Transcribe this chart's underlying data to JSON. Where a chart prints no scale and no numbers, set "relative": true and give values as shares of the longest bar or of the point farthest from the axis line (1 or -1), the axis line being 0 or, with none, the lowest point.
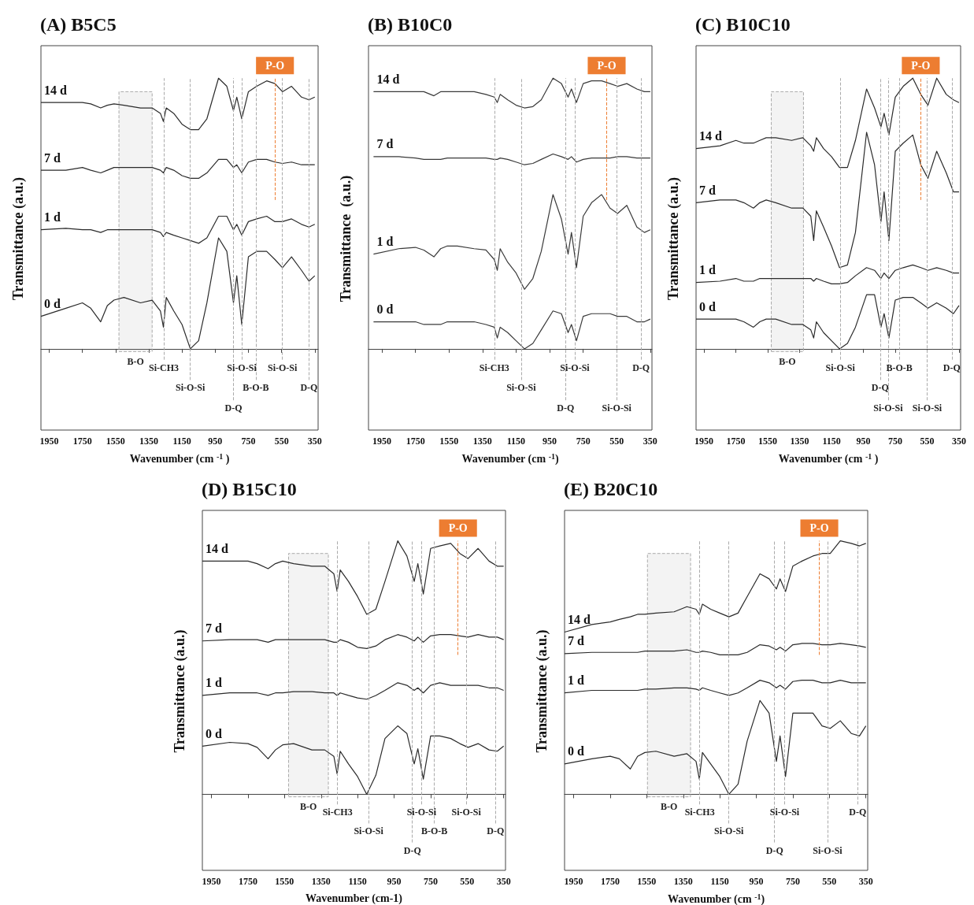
{
  "chart_data": [
    {
      "type": "line",
      "title": "(A) B5C5",
      "xlabel": "Wavenumber (cm $^{-1}$ )",
      "ylabel": "Transmittance (a.u.)",
      "relative": true,
      "xlim": [
        2000,
        330
      ],
      "xticks": [
        1950,
        1750,
        1550,
        1350,
        1150,
        950,
        750,
        550,
        350
      ],
      "x": [
        2000,
        1850,
        1750,
        1700,
        1640,
        1600,
        1560,
        1500,
        1400,
        1330,
        1280,
        1262,
        1245,
        1200,
        1150,
        1100,
        1050,
        1000,
        930,
        880,
        840,
        820,
        790,
        750,
        700,
        640,
        590,
        545,
        490,
        430,
        385,
        350
      ],
      "series": [
        {
          "name": "14 d",
          "color": "#2b2b2b",
          "values": [
            0.91,
            0.91,
            0.91,
            0.905,
            0.89,
            0.9,
            0.905,
            0.9,
            0.89,
            0.89,
            0.87,
            0.84,
            0.89,
            0.87,
            0.83,
            0.81,
            0.81,
            0.85,
            1,
            0.97,
            0.88,
            0.93,
            0.85,
            0.95,
            0.97,
            0.99,
            0.98,
            0.95,
            0.97,
            0.93,
            0.92,
            0.93
          ]
        },
        {
          "name": "7 d",
          "color": "#2b2b2b",
          "values": [
            0.66,
            0.66,
            0.67,
            0.66,
            0.65,
            0.66,
            0.67,
            0.67,
            0.67,
            0.67,
            0.66,
            0.65,
            0.67,
            0.66,
            0.64,
            0.63,
            0.63,
            0.65,
            0.7,
            0.7,
            0.67,
            0.68,
            0.65,
            0.69,
            0.7,
            0.7,
            0.69,
            0.685,
            0.69,
            0.68,
            0.68,
            0.68
          ]
        },
        {
          "name": "1 d",
          "color": "#2b2b2b",
          "values": [
            0.44,
            0.445,
            0.44,
            0.44,
            0.43,
            0.44,
            0.44,
            0.44,
            0.44,
            0.44,
            0.43,
            0.415,
            0.43,
            0.42,
            0.41,
            0.4,
            0.39,
            0.41,
            0.49,
            0.49,
            0.44,
            0.46,
            0.42,
            0.47,
            0.48,
            0.49,
            0.47,
            0.47,
            0.48,
            0.46,
            0.45,
            0.46
          ]
        },
        {
          "name": "0 d",
          "color": "#2b2b2b",
          "values": [
            0.12,
            0.15,
            0.17,
            0.15,
            0.1,
            0.16,
            0.18,
            0.19,
            0.17,
            0.18,
            0.14,
            0.08,
            0.19,
            0.14,
            0.09,
            0,
            0.03,
            0.17,
            0.41,
            0.36,
            0.17,
            0.27,
            0.09,
            0.34,
            0.36,
            0.36,
            0.33,
            0.3,
            0.34,
            0.29,
            0.25,
            0.27
          ]
        }
      ],
      "ref_lines": [
        {
          "axis": "x",
          "value": 1260,
          "label": "Si-CH3"
        },
        {
          "axis": "x",
          "value": 1100,
          "label": "Si-O-Si"
        },
        {
          "axis": "x",
          "value": 840,
          "label": "D-Q"
        },
        {
          "axis": "x",
          "value": 790,
          "label": "Si-O-Si"
        },
        {
          "axis": "x",
          "value": 705,
          "label": "B-O-B"
        },
        {
          "axis": "x",
          "value": 590,
          "label": "P-O",
          "color": "#ed7d31"
        },
        {
          "axis": "x",
          "value": 545,
          "label": "Si-O-Si"
        },
        {
          "axis": "x",
          "value": 385,
          "label": "D-Q"
        }
      ],
      "bands": [
        {
          "axis": "x",
          "from": 1530,
          "to": 1330,
          "label": "B-O"
        }
      ]
    },
    {
      "type": "line",
      "title": "(B) B10C0",
      "xlabel": "Wavenumber (cm $^{-1}$)",
      "ylabel": "Transmittance  (a.u.)",
      "relative": true,
      "xlim": [
        2030,
        340
      ],
      "xticks": [
        1950,
        1750,
        1550,
        1350,
        1150,
        950,
        750,
        550,
        350
      ],
      "x": [
        2000,
        1850,
        1750,
        1700,
        1640,
        1600,
        1560,
        1500,
        1400,
        1330,
        1280,
        1262,
        1245,
        1200,
        1150,
        1100,
        1050,
        1000,
        930,
        880,
        840,
        820,
        790,
        750,
        700,
        640,
        590,
        545,
        490,
        430,
        385,
        350
      ],
      "series": [
        {
          "name": "14 d",
          "color": "#3a3a3a",
          "values": [
            0.95,
            0.95,
            0.95,
            0.95,
            0.935,
            0.95,
            0.95,
            0.95,
            0.95,
            0.94,
            0.93,
            0.91,
            0.94,
            0.92,
            0.9,
            0.89,
            0.895,
            0.92,
            1,
            0.98,
            0.93,
            0.96,
            0.91,
            0.98,
            0.99,
            0.99,
            0.98,
            0.97,
            0.98,
            0.96,
            0.95,
            0.95
          ]
        },
        {
          "name": "7 d",
          "color": "#3a3a3a",
          "values": [
            0.71,
            0.71,
            0.705,
            0.7,
            0.7,
            0.7,
            0.705,
            0.705,
            0.705,
            0.705,
            0.7,
            0.7,
            0.705,
            0.7,
            0.69,
            0.68,
            0.685,
            0.7,
            0.72,
            0.71,
            0.7,
            0.71,
            0.69,
            0.7,
            0.705,
            0.705,
            0.705,
            0.71,
            0.71,
            0.705,
            0.705,
            0.705
          ]
        },
        {
          "name": "1 d",
          "color": "#3a3a3a",
          "values": [
            0.35,
            0.37,
            0.375,
            0.365,
            0.34,
            0.37,
            0.38,
            0.38,
            0.37,
            0.365,
            0.33,
            0.29,
            0.37,
            0.32,
            0.28,
            0.22,
            0.26,
            0.36,
            0.57,
            0.48,
            0.35,
            0.43,
            0.3,
            0.49,
            0.54,
            0.57,
            0.52,
            0.5,
            0.53,
            0.45,
            0.43,
            0.44
          ]
        },
        {
          "name": "0 d",
          "color": "#3a3a3a",
          "values": [
            0.1,
            0.1,
            0.1,
            0.09,
            0.09,
            0.09,
            0.1,
            0.1,
            0.1,
            0.09,
            0.08,
            0.04,
            0.08,
            0.06,
            0.03,
            0,
            0.02,
            0.07,
            0.14,
            0.13,
            0.06,
            0.09,
            0.03,
            0.12,
            0.13,
            0.13,
            0.13,
            0.12,
            0.12,
            0.1,
            0.1,
            0.11
          ]
        }
      ],
      "ref_lines": [
        {
          "axis": "x",
          "value": 1280,
          "label": "Si-CH3"
        },
        {
          "axis": "x",
          "value": 1120,
          "label": "Si-O-Si"
        },
        {
          "axis": "x",
          "value": 855,
          "label": "D-Q"
        },
        {
          "axis": "x",
          "value": 800,
          "label": "Si-O-Si"
        },
        {
          "axis": "x",
          "value": 610,
          "label": "P-O",
          "color": "#ed7d31"
        },
        {
          "axis": "x",
          "value": 550,
          "label": "Si-O-Si"
        },
        {
          "axis": "x",
          "value": 405,
          "label": "D-Q"
        }
      ]
    },
    {
      "type": "line",
      "title": "(C) B10C10",
      "xlabel": "Wavenumber (cm $^{-1}$ )",
      "ylabel": "Transmittance (a.u.)",
      "relative": true,
      "xlim": [
        2000,
        340
      ],
      "xticks": [
        1950,
        1750,
        1550,
        1350,
        1150,
        950,
        750,
        550,
        350
      ],
      "x": [
        2000,
        1850,
        1750,
        1700,
        1640,
        1600,
        1560,
        1500,
        1400,
        1330,
        1280,
        1262,
        1245,
        1200,
        1150,
        1100,
        1050,
        1000,
        930,
        880,
        840,
        820,
        790,
        750,
        700,
        640,
        590,
        545,
        490,
        430,
        385,
        350
      ],
      "series": [
        {
          "name": "14 d",
          "color": "#2b2b2b",
          "values": [
            0.74,
            0.75,
            0.77,
            0.76,
            0.76,
            0.77,
            0.78,
            0.78,
            0.77,
            0.78,
            0.75,
            0.73,
            0.78,
            0.74,
            0.71,
            0.67,
            0.67,
            0.77,
            0.96,
            0.89,
            0.82,
            0.87,
            0.79,
            0.93,
            0.97,
            1,
            0.94,
            0.9,
            1,
            0.94,
            0.92,
            0.91
          ]
        },
        {
          "name": "7 d",
          "color": "#2b2b2b",
          "values": [
            0.54,
            0.55,
            0.55,
            0.54,
            0.52,
            0.54,
            0.55,
            0.54,
            0.52,
            0.52,
            0.49,
            0.4,
            0.51,
            0.45,
            0.38,
            0.3,
            0.31,
            0.43,
            0.8,
            0.68,
            0.47,
            0.58,
            0.4,
            0.73,
            0.76,
            0.79,
            0.68,
            0.63,
            0.73,
            0.65,
            0.58,
            0.58
          ]
        },
        {
          "name": "1 d",
          "color": "#2b2b2b",
          "values": [
            0.245,
            0.25,
            0.26,
            0.25,
            0.25,
            0.26,
            0.26,
            0.26,
            0.26,
            0.26,
            0.26,
            0.25,
            0.26,
            0.25,
            0.24,
            0.24,
            0.245,
            0.27,
            0.3,
            0.29,
            0.26,
            0.28,
            0.26,
            0.29,
            0.3,
            0.31,
            0.3,
            0.29,
            0.3,
            0.29,
            0.28,
            0.28
          ]
        },
        {
          "name": "0 d",
          "color": "#2b2b2b",
          "values": [
            0.11,
            0.11,
            0.11,
            0.1,
            0.08,
            0.1,
            0.11,
            0.11,
            0.09,
            0.09,
            0.07,
            0.04,
            0.1,
            0.06,
            0.03,
            0,
            0.02,
            0.08,
            0.2,
            0.2,
            0.08,
            0.13,
            0.04,
            0.18,
            0.19,
            0.19,
            0.17,
            0.15,
            0.17,
            0.15,
            0.13,
            0.16
          ]
        }
      ],
      "ref_lines": [
        {
          "axis": "x",
          "value": 1095,
          "label": "Si-O-Si"
        },
        {
          "axis": "x",
          "value": 845,
          "label": "D-Q"
        },
        {
          "axis": "x",
          "value": 795,
          "label": "Si-O-Si"
        },
        {
          "axis": "x",
          "value": 725,
          "label": "B-O-B"
        },
        {
          "axis": "x",
          "value": 590,
          "label": "P-O",
          "color": "#ed7d31"
        },
        {
          "axis": "x",
          "value": 550,
          "label": "Si-O-Si"
        },
        {
          "axis": "x",
          "value": 395,
          "label": "D-Q"
        }
      ],
      "bands": [
        {
          "axis": "x",
          "from": 1528,
          "to": 1326,
          "label": "B-O"
        }
      ]
    },
    {
      "type": "line",
      "title": "(D) B15C10",
      "xlabel": "Wavenumber (cm-1)",
      "ylabel": "Transmittance (a.u.)",
      "relative": true,
      "xlim": [
        2000,
        340
      ],
      "xticks": [
        1950,
        1750,
        1550,
        1350,
        1150,
        950,
        750,
        550,
        350
      ],
      "x": [
        2000,
        1850,
        1750,
        1700,
        1640,
        1600,
        1560,
        1500,
        1400,
        1330,
        1280,
        1262,
        1245,
        1200,
        1150,
        1100,
        1050,
        1000,
        930,
        880,
        840,
        820,
        790,
        750,
        700,
        640,
        590,
        545,
        490,
        430,
        385,
        350
      ],
      "series": [
        {
          "name": "14 d",
          "color": "#2b2b2b",
          "values": [
            0.92,
            0.92,
            0.92,
            0.91,
            0.89,
            0.91,
            0.92,
            0.91,
            0.9,
            0.9,
            0.87,
            0.8,
            0.885,
            0.84,
            0.78,
            0.71,
            0.73,
            0.84,
            1,
            0.94,
            0.84,
            0.91,
            0.79,
            0.97,
            0.98,
            0.99,
            0.95,
            0.93,
            0.97,
            0.92,
            0.9,
            0.9
          ]
        },
        {
          "name": "7 d",
          "color": "#2b2b2b",
          "values": [
            0.605,
            0.61,
            0.61,
            0.61,
            0.6,
            0.61,
            0.61,
            0.61,
            0.61,
            0.61,
            0.6,
            0.6,
            0.61,
            0.6,
            0.58,
            0.575,
            0.585,
            0.61,
            0.63,
            0.62,
            0.605,
            0.62,
            0.6,
            0.625,
            0.63,
            0.63,
            0.625,
            0.62,
            0.63,
            0.62,
            0.62,
            0.61
          ]
        },
        {
          "name": "1 d",
          "color": "#2b2b2b",
          "values": [
            0.39,
            0.4,
            0.4,
            0.4,
            0.39,
            0.4,
            0.4,
            0.405,
            0.405,
            0.4,
            0.4,
            0.39,
            0.4,
            0.39,
            0.38,
            0.375,
            0.39,
            0.41,
            0.44,
            0.43,
            0.41,
            0.42,
            0.4,
            0.43,
            0.44,
            0.43,
            0.43,
            0.43,
            0.43,
            0.42,
            0.42,
            0.41
          ]
        },
        {
          "name": "0 d",
          "color": "#2b2b2b",
          "values": [
            0.19,
            0.205,
            0.2,
            0.185,
            0.14,
            0.175,
            0.195,
            0.2,
            0.175,
            0.175,
            0.15,
            0.08,
            0.17,
            0.12,
            0.07,
            0,
            0.075,
            0.22,
            0.27,
            0.24,
            0.12,
            0.18,
            0.06,
            0.23,
            0.23,
            0.22,
            0.2,
            0.185,
            0.2,
            0.175,
            0.17,
            0.19
          ]
        }
      ],
      "ref_lines": [
        {
          "axis": "x",
          "value": 1260,
          "label": "Si-CH3"
        },
        {
          "axis": "x",
          "value": 1090,
          "label": "Si-O-Si"
        },
        {
          "axis": "x",
          "value": 850,
          "label": "D-Q"
        },
        {
          "axis": "x",
          "value": 800,
          "label": "Si-O-Si"
        },
        {
          "axis": "x",
          "value": 730,
          "label": "B-O-B"
        },
        {
          "axis": "x",
          "value": 600,
          "label": "P-O",
          "color": "#ed7d31"
        },
        {
          "axis": "x",
          "value": 555,
          "label": "Si-O-Si"
        },
        {
          "axis": "x",
          "value": 395,
          "label": "D-Q"
        }
      ],
      "bands": [
        {
          "axis": "x",
          "from": 1528,
          "to": 1310,
          "label": "B-O"
        }
      ]
    },
    {
      "type": "line",
      "title": "(E) B20C10",
      "xlabel": "Wavenumber (cm $^{-1}$)",
      "ylabel": "Transmittance (a.u.)",
      "relative": true,
      "xlim": [
        2000,
        340
      ],
      "xticks": [
        1950,
        1750,
        1550,
        1350,
        1150,
        950,
        750,
        550,
        350
      ],
      "x": [
        2000,
        1850,
        1750,
        1700,
        1640,
        1600,
        1560,
        1500,
        1400,
        1330,
        1280,
        1262,
        1245,
        1200,
        1150,
        1100,
        1050,
        1000,
        930,
        880,
        840,
        820,
        790,
        750,
        700,
        640,
        590,
        545,
        490,
        430,
        385,
        350
      ],
      "series": [
        {
          "name": "14 d",
          "color": "#2b2b2b",
          "values": [
            0.64,
            0.67,
            0.68,
            0.69,
            0.7,
            0.71,
            0.71,
            0.715,
            0.72,
            0.74,
            0.73,
            0.71,
            0.75,
            0.73,
            0.715,
            0.7,
            0.715,
            0.78,
            0.87,
            0.85,
            0.81,
            0.85,
            0.8,
            0.9,
            0.92,
            0.94,
            0.95,
            0.95,
            1,
            0.99,
            0.98,
            0.99
          ]
        },
        {
          "name": "7 d",
          "color": "#2b2b2b",
          "values": [
            0.555,
            0.56,
            0.56,
            0.56,
            0.56,
            0.56,
            0.565,
            0.565,
            0.565,
            0.57,
            0.56,
            0.56,
            0.565,
            0.56,
            0.55,
            0.55,
            0.55,
            0.56,
            0.59,
            0.585,
            0.57,
            0.58,
            0.565,
            0.59,
            0.595,
            0.595,
            0.59,
            0.59,
            0.595,
            0.59,
            0.585,
            0.58
          ]
        },
        {
          "name": "1 d",
          "color": "#2b2b2b",
          "values": [
            0.4,
            0.41,
            0.41,
            0.41,
            0.41,
            0.41,
            0.415,
            0.415,
            0.42,
            0.42,
            0.415,
            0.41,
            0.42,
            0.41,
            0.4,
            0.39,
            0.4,
            0.42,
            0.45,
            0.44,
            0.42,
            0.43,
            0.415,
            0.445,
            0.45,
            0.45,
            0.44,
            0.44,
            0.45,
            0.44,
            0.44,
            0.44
          ]
        },
        {
          "name": "0 d",
          "color": "#2b2b2b",
          "values": [
            0.12,
            0.14,
            0.15,
            0.14,
            0.1,
            0.15,
            0.165,
            0.17,
            0.15,
            0.16,
            0.13,
            0.06,
            0.165,
            0.12,
            0.07,
            0,
            0.04,
            0.21,
            0.37,
            0.32,
            0.13,
            0.23,
            0.07,
            0.32,
            0.32,
            0.32,
            0.27,
            0.26,
            0.29,
            0.24,
            0.23,
            0.27
          ]
        }
      ],
      "ref_lines": [
        {
          "axis": "x",
          "value": 1260,
          "label": "Si-CH3"
        },
        {
          "axis": "x",
          "value": 1100,
          "label": "Si-O-Si"
        },
        {
          "axis": "x",
          "value": 850,
          "label": "D-Q"
        },
        {
          "axis": "x",
          "value": 795,
          "label": "Si-O-Si"
        },
        {
          "axis": "x",
          "value": 605,
          "label": "P-O",
          "color": "#ed7d31"
        },
        {
          "axis": "x",
          "value": 560,
          "label": "Si-O-Si"
        },
        {
          "axis": "x",
          "value": 395,
          "label": "D-Q"
        }
      ],
      "bands": [
        {
          "axis": "x",
          "from": 1546,
          "to": 1310,
          "label": "B-O"
        }
      ]
    }
  ]
}
